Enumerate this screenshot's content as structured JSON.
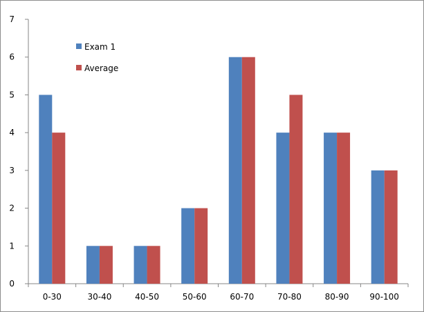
{
  "chart_data": {
    "type": "bar",
    "title": "",
    "xlabel": "",
    "ylabel": "",
    "categories": [
      "0-30",
      "30-40",
      "40-50",
      "50-60",
      "60-70",
      "70-80",
      "80-90",
      "90-100"
    ],
    "series": [
      {
        "name": "Exam 1",
        "color": "#4f81bd",
        "values": [
          5,
          1,
          1,
          2,
          6,
          4,
          4,
          3
        ]
      },
      {
        "name": "Average",
        "color": "#c0504d",
        "values": [
          4,
          1,
          1,
          2,
          6,
          5,
          4,
          3
        ]
      }
    ],
    "ylim": [
      0,
      7
    ],
    "yticks": [
      0,
      1,
      2,
      3,
      4,
      5,
      6,
      7
    ],
    "grid": false,
    "legend_position": "top-left"
  }
}
